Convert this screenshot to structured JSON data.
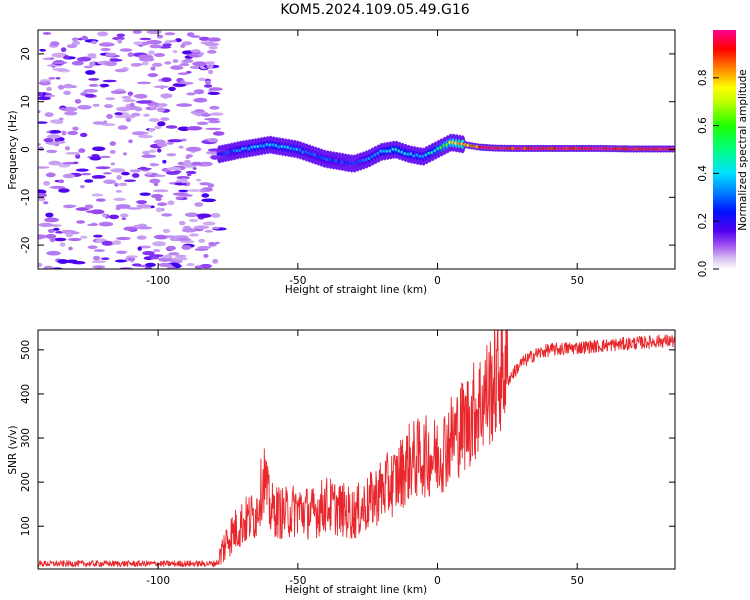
{
  "page": {
    "title": "KOM5.2024.109.05.49.G16"
  },
  "chart_data": [
    {
      "type": "heatmap",
      "xlabel": "Height of straight line (km)",
      "ylabel": "Frequency (Hz)",
      "xlim": [
        -143,
        85
      ],
      "ylim": [
        -25,
        25
      ],
      "xticks": [
        -100,
        -50,
        0,
        50
      ],
      "yticks": [
        -20,
        -10,
        0,
        10,
        20
      ],
      "colorbar": {
        "label": "Normalized spectral amplitude",
        "range": [
          0,
          1
        ],
        "ticks": [
          "0.0",
          "0.2",
          "0.4",
          "0.6",
          "0.8"
        ],
        "tick_values": [
          0.0,
          0.2,
          0.4,
          0.6,
          0.8
        ]
      },
      "noise_region_x": [
        -143,
        -78
      ],
      "ridge": {
        "x": [
          -78,
          -70,
          -60,
          -50,
          -45,
          -40,
          -35,
          -30,
          -25,
          -20,
          -15,
          -10,
          -5,
          0,
          5,
          10,
          15,
          20,
          30,
          40,
          50,
          60,
          70,
          80,
          85
        ],
        "frequency": [
          -1,
          0,
          1,
          0,
          -1,
          -2,
          -2.5,
          -3,
          -2,
          -0.5,
          0,
          -1,
          -1.5,
          0,
          1.5,
          1,
          0.5,
          0.3,
          0.2,
          0.2,
          0.2,
          0.2,
          0.1,
          0.1,
          0.1
        ],
        "amplitude": [
          0.22,
          0.35,
          0.38,
          0.36,
          0.3,
          0.3,
          0.28,
          0.25,
          0.32,
          0.38,
          0.45,
          0.4,
          0.36,
          0.5,
          0.7,
          0.85,
          0.9,
          0.95,
          0.95,
          0.96,
          0.97,
          0.97,
          0.98,
          0.98,
          0.98
        ]
      }
    },
    {
      "type": "line",
      "xlabel": "Height of straight line (km)",
      "ylabel": "SNR (v/v)",
      "xlim": [
        -143,
        85
      ],
      "ylim": [
        3,
        545
      ],
      "xticks": [
        -100,
        -50,
        0,
        50
      ],
      "yticks": [
        100,
        200,
        300,
        400,
        500
      ],
      "color": "#e8262b",
      "series": [
        {
          "x": [
            -143,
            -130,
            -120,
            -110,
            -100,
            -90,
            -80,
            -78,
            -75,
            -70,
            -65,
            -62,
            -60,
            -55,
            -50,
            -45,
            -40,
            -35,
            -30,
            -25,
            -20,
            -15,
            -10,
            -5,
            0,
            5,
            10,
            15,
            20,
            25,
            30,
            35,
            40,
            50,
            60,
            70,
            80,
            85
          ],
          "y": [
            15,
            15,
            15,
            15,
            15,
            15,
            15,
            20,
            60,
            90,
            110,
            190,
            120,
            110,
            120,
            110,
            130,
            120,
            110,
            130,
            160,
            180,
            220,
            230,
            230,
            270,
            300,
            340,
            380,
            430,
            470,
            490,
            500,
            505,
            510,
            515,
            520,
            520
          ]
        }
      ]
    }
  ]
}
